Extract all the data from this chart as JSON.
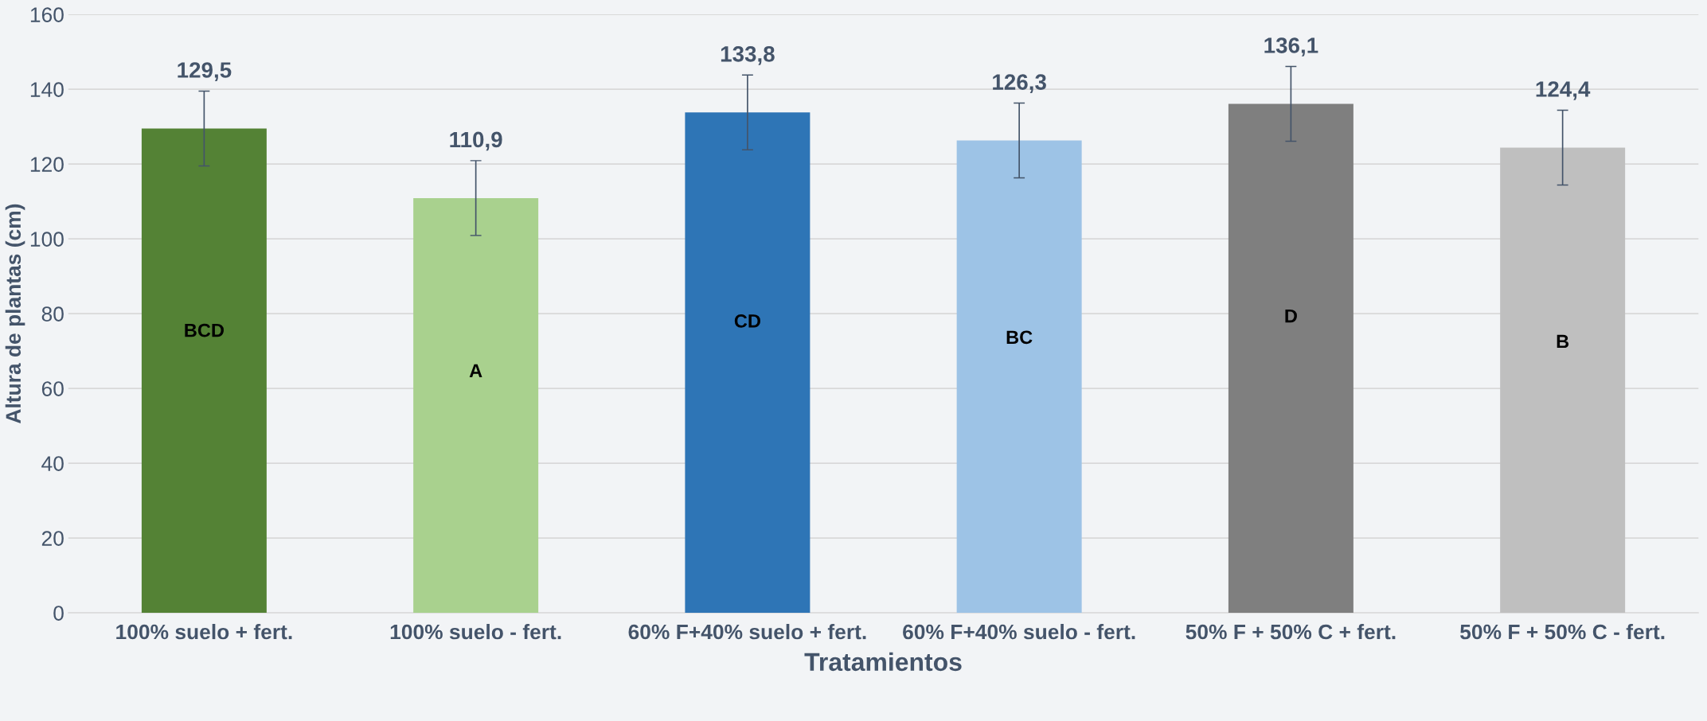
{
  "chart_data": {
    "type": "bar",
    "xlabel": "Tratamientos",
    "ylabel": "Altura de plantas (cm)",
    "categories": [
      "100% suelo + fert.",
      "100% suelo - fert.",
      "60% F+40% suelo + fert.",
      "60% F+40% suelo - fert.",
      "50% F + 50% C + fert.",
      "50% F + 50% C - fert."
    ],
    "values": [
      129.5,
      110.9,
      133.8,
      126.3,
      136.1,
      124.4
    ],
    "colors": [
      "#548235",
      "#a9d18e",
      "#2e75b6",
      "#9dc3e6",
      "#7f7f7f",
      "#bfbfbf"
    ],
    "errors": [
      10,
      10,
      10,
      10,
      10,
      10
    ],
    "value_labels": [
      "129,5",
      "110,9",
      "133,8",
      "126,3",
      "136,1",
      "124,4"
    ],
    "annotations": [
      "BCD",
      "A",
      "CD",
      "BC",
      "D",
      "B"
    ],
    "ylim": [
      0,
      160
    ],
    "yticks": [
      0,
      20,
      40,
      60,
      80,
      100,
      120,
      140,
      160
    ],
    "grid": "y",
    "legend": false
  }
}
